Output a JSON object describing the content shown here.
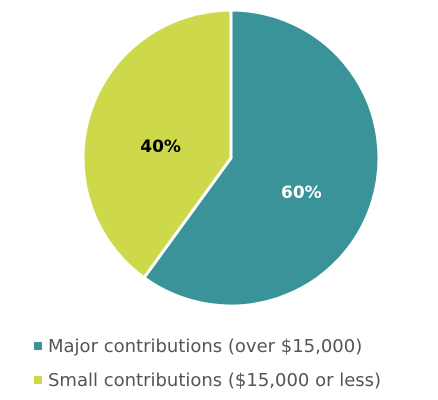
{
  "chart_data": {
    "type": "pie",
    "categories": [
      "Major contributions (over $15,000)",
      "Small contributions ($15,000 or less)"
    ],
    "values": [
      60,
      40
    ],
    "value_labels": [
      "60%",
      "40%"
    ],
    "colors": [
      "#3a9399",
      "#cdd94a"
    ],
    "label_colors": [
      "#ffffff",
      "#000000"
    ],
    "legend": "bottom"
  }
}
